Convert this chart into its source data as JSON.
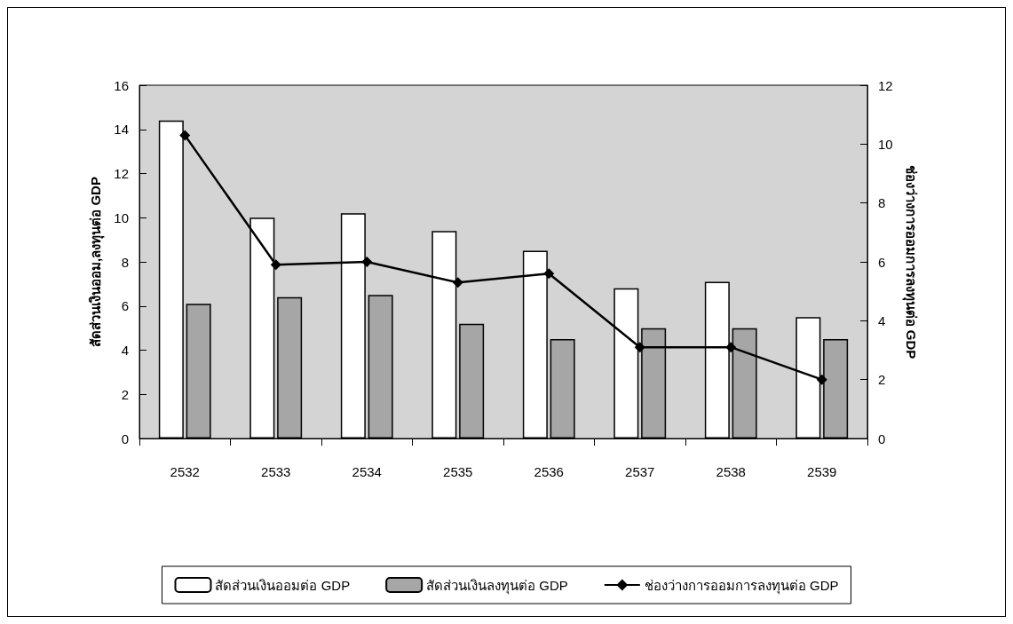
{
  "chart_data": {
    "type": "bar",
    "categories": [
      "2532",
      "2533",
      "2534",
      "2535",
      "2536",
      "2537",
      "2538",
      "2539"
    ],
    "series": [
      {
        "name": "สัดส่วนเงินออมต่อ GDP",
        "color": "#ffffff",
        "values": [
          14.4,
          10.0,
          10.2,
          9.4,
          8.5,
          6.8,
          7.1,
          5.5
        ]
      },
      {
        "name": "สัดส่วนเงินลงทุนต่อ GDP",
        "color": "#a6a6a6",
        "values": [
          6.1,
          6.4,
          6.5,
          5.2,
          4.5,
          5.0,
          5.0,
          4.5
        ]
      },
      {
        "name": "ช่องว่างการออมการลงทุนต่อ GDP",
        "type": "line",
        "axis": "y2",
        "color": "#000000",
        "values": [
          10.3,
          5.9,
          6.0,
          5.3,
          5.6,
          3.1,
          3.1,
          2.0
        ]
      }
    ],
    "ylabel": "สัดส่วนเงินออม,ลงทุนต่อ GDP",
    "y2label": "ช่องว่างการออมการลงทุนต่อ GDP",
    "ylim": [
      0,
      16
    ],
    "yticks": [
      0,
      2,
      4,
      6,
      8,
      10,
      12,
      14,
      16
    ],
    "y2lim": [
      0,
      12
    ],
    "y2ticks": [
      0,
      2,
      4,
      6,
      8,
      10,
      12
    ],
    "grid": false,
    "legend": "bottom",
    "marker": "diamond",
    "line_style": "solid"
  }
}
